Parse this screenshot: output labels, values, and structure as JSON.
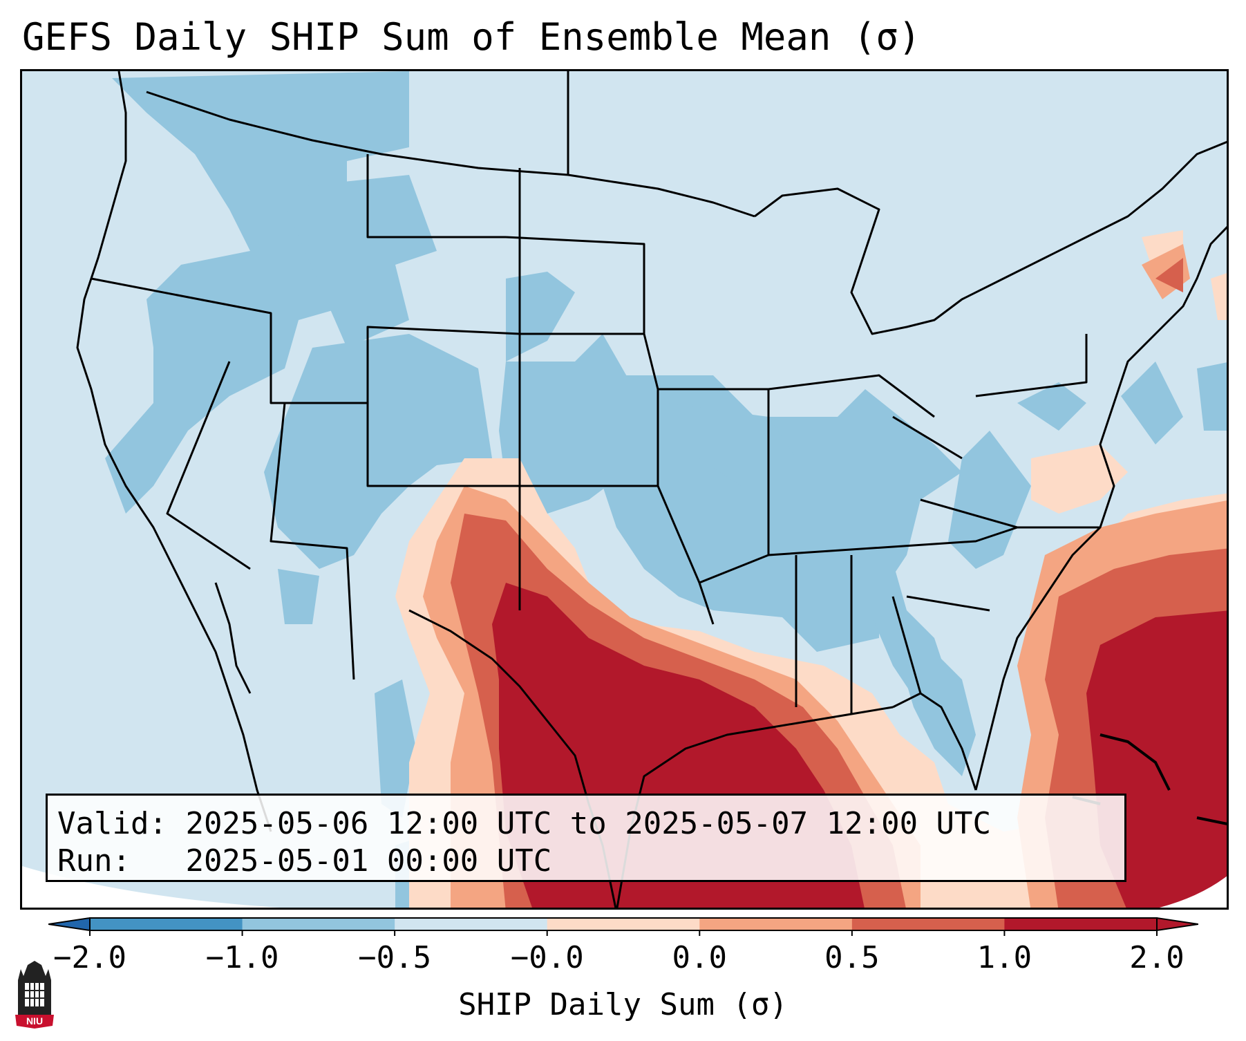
{
  "title": "GEFS Daily SHIP Sum of Ensemble Mean (σ)",
  "info": {
    "valid_label": "Valid:",
    "valid_value": "2025-05-06 12:00 UTC to 2025-05-07 12:00 UTC",
    "run_label": "Run:",
    "run_value": "2025-05-01 00:00 UTC"
  },
  "colorbar": {
    "label": "SHIP Daily Sum (σ)",
    "ticks": [
      "−2.0",
      "−1.0",
      "−0.5",
      "−0.0",
      "0.0",
      "0.5",
      "1.0",
      "2.0"
    ],
    "colors": [
      "#4393c3",
      "#92c5de",
      "#d1e5f0",
      "#fddbc7",
      "#f4a582",
      "#d6604d",
      "#b2182b"
    ],
    "extend_low_color": "#2166ac",
    "extend_high_color": "#b2182b"
  },
  "map": {
    "ocean_color": "#d1e5f0",
    "border_color": "#000000",
    "field_description_regions": [
      {
        "category": "−1.0 to −0.5",
        "color": "#92c5de"
      },
      {
        "category": "0.0 to 0.5",
        "color": "#fddbc7"
      },
      {
        "category": "0.5 to 1.0",
        "color": "#f4a582"
      },
      {
        "category": "1.0 to 2.0",
        "color": "#d6604d"
      },
      {
        "category": "above 2.0",
        "color": "#b2182b"
      }
    ]
  },
  "logo": {
    "text": "NIU",
    "icon": "niu-building-icon"
  }
}
